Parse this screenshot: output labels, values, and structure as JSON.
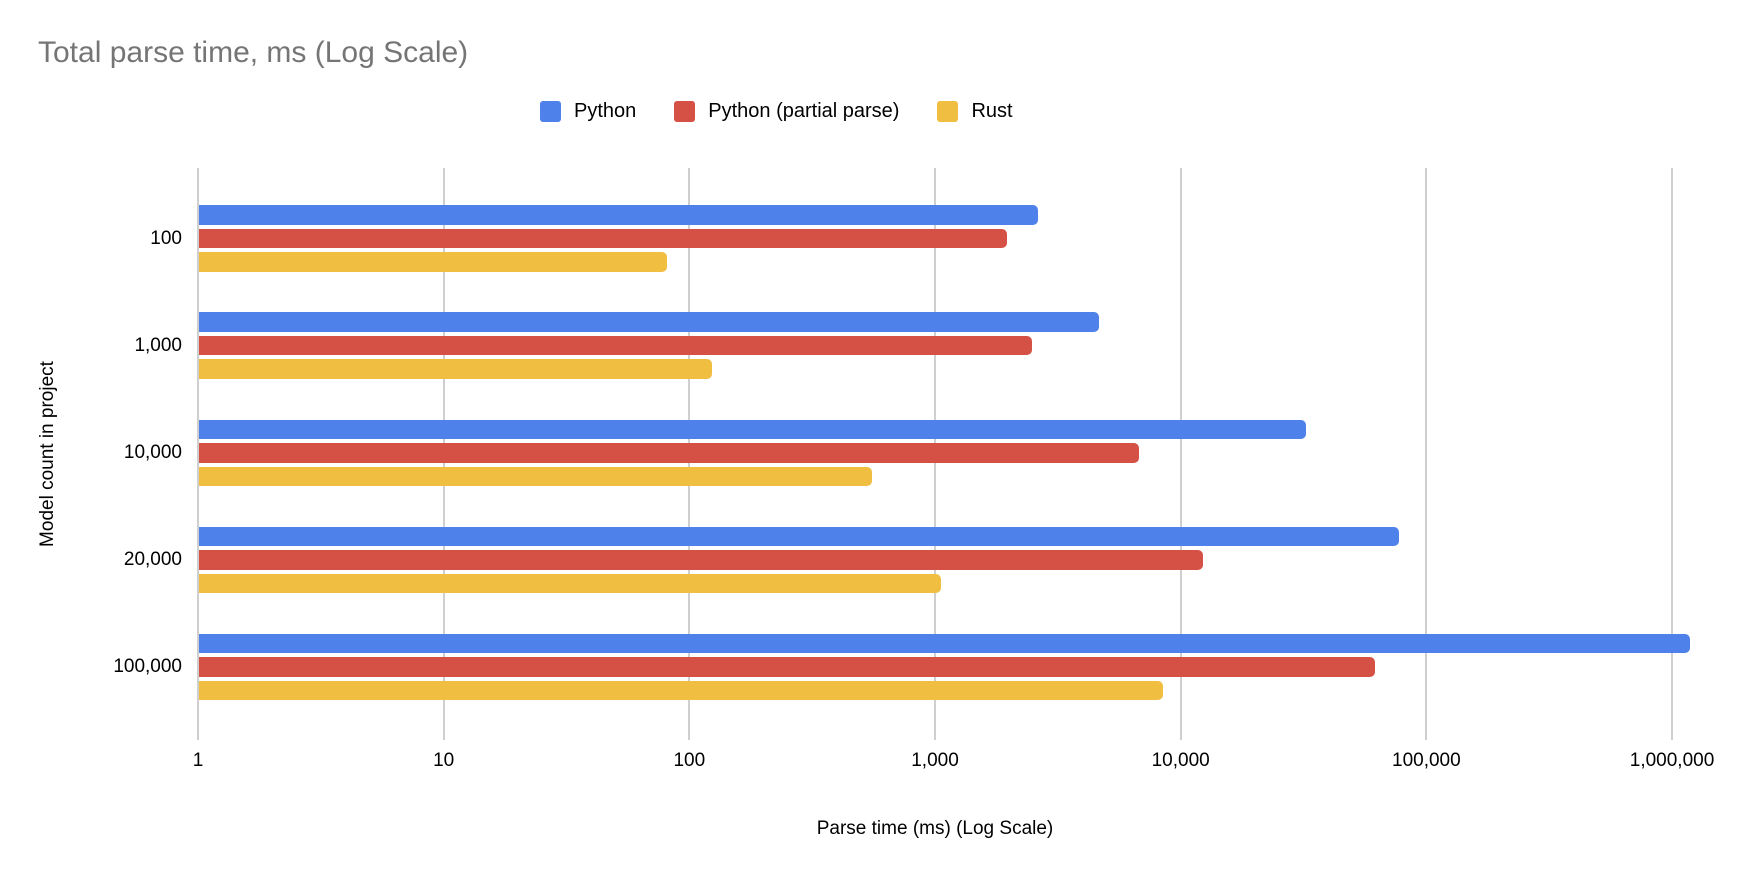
{
  "title": "Total parse time, ms (Log Scale)",
  "colors": {
    "python": "#4e81ea",
    "python_partial": "#d65145",
    "rust": "#f0bf41",
    "title_text": "#757575",
    "gridline": "#cfcfcf",
    "axis_text": "#000000"
  },
  "chart_data": {
    "type": "bar",
    "orientation": "horizontal",
    "title": "Total parse time, ms (Log Scale)",
    "xlabel": "Parse time (ms) (Log Scale)",
    "ylabel": "Model count in project",
    "x_scale": "log",
    "xlim": [
      1,
      1200000
    ],
    "grid": true,
    "legend_position": "top",
    "categories": [
      "100",
      "1,000",
      "10,000",
      "20,000",
      "100,000"
    ],
    "x_tick_values": [
      1,
      10,
      100,
      1000,
      10000,
      100000,
      1000000
    ],
    "x_tick_labels": [
      "1",
      "10",
      "100",
      "1,000",
      "10,000",
      "100,000",
      "1,000,000"
    ],
    "series": [
      {
        "name": "Python",
        "color": "#4e81ea",
        "values": [
          2600,
          4600,
          32000,
          77000,
          1170000
        ]
      },
      {
        "name": "Python (partial parse)",
        "color": "#d65145",
        "values": [
          1950,
          2450,
          6700,
          12200,
          61000
        ]
      },
      {
        "name": "Rust",
        "color": "#f0bf41",
        "values": [
          80,
          123,
          550,
          1050,
          8400
        ]
      }
    ]
  }
}
